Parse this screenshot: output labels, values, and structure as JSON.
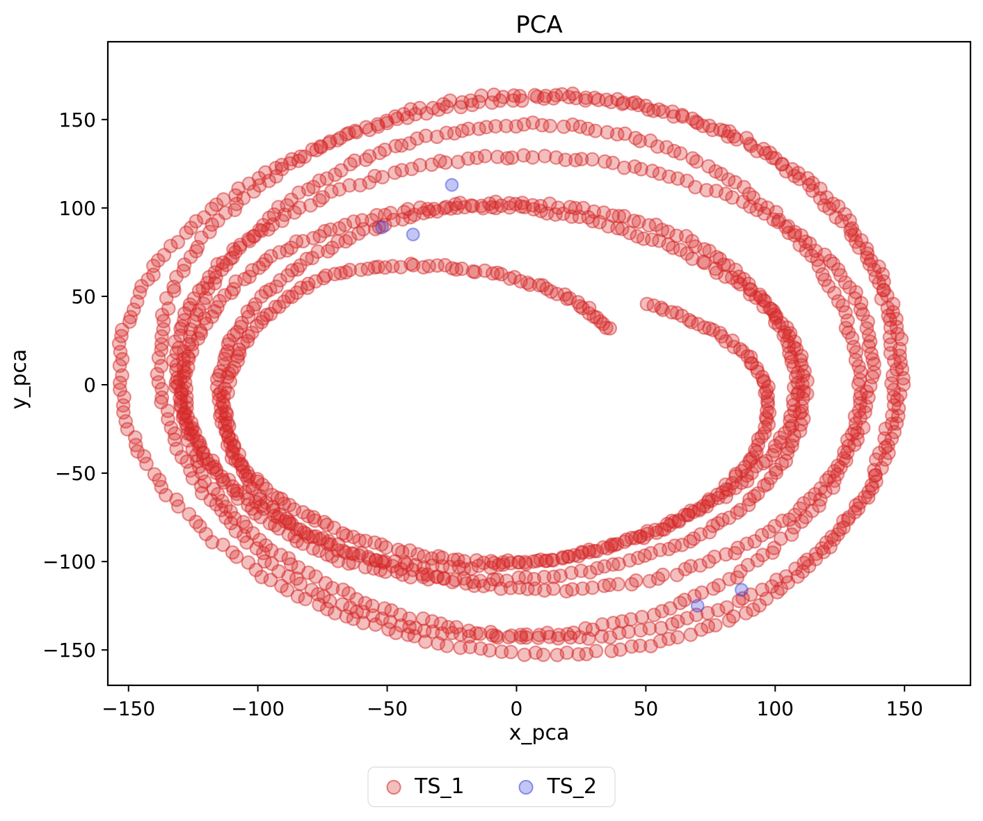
{
  "chart_data": {
    "type": "scatter",
    "title": "PCA",
    "xlabel": "x_pca",
    "ylabel": "y_pca",
    "xlim": [
      -158,
      175.5
    ],
    "ylim": [
      -170,
      194
    ],
    "xticks": [
      -150,
      -100,
      -50,
      0,
      50,
      100,
      150
    ],
    "yticks": [
      -150,
      -100,
      -50,
      0,
      50,
      100,
      150
    ],
    "grid": false,
    "background": "#ffffff",
    "legend": {
      "position": "below-center",
      "entries": [
        "TS_1",
        "TS_2"
      ]
    },
    "series": [
      {
        "name": "TS_1",
        "marker": "circle",
        "color": "#d62728",
        "fill_alpha": 0.3,
        "edge_alpha": 0.5,
        "marker_radius_px": 9.3,
        "summary": "Dense quasi-periodic trajectory of ~1600 overlapping markers forming 7 nested wobbly elliptical loops (sweeping outward then back inward), x range approx [-145,162], y range approx [-153,177], with both trajectory end-tips near (40,45) in the interior",
        "extent": {
          "x_min": -145,
          "x_max": 162,
          "y_min": -153,
          "y_max": 177
        },
        "generator": {
          "seed": 11,
          "n": 1600,
          "loops": 7.02,
          "start_angle": 0.96,
          "direction": -1,
          "tri_exp": 1.15,
          "rx": {
            "base": 100,
            "amp": 52
          },
          "ry": {
            "base": 76,
            "amp": 90
          },
          "cx": {
            "base": -10,
            "amp": 16
          },
          "cy": {
            "base": -13,
            "amp": 26
          },
          "wobble_rx": [
            [
              5,
              0.53,
              1.1
            ],
            [
              3.5,
              1.27,
              4.2
            ],
            [
              2,
              3.1,
              0.5
            ]
          ],
          "wobble_ry": [
            [
              6,
              0.47,
              2.6
            ],
            [
              4,
              1.13,
              5.1
            ],
            [
              2,
              2.9,
              1.9
            ]
          ],
          "wobble_cx": [
            [
              2.5,
              0.21,
              0.8
            ]
          ],
          "wobble_cy": [
            [
              2.5,
              0.26,
              3.9
            ]
          ],
          "jitter": 1.1,
          "end_taper": {
            "start_t": 0.97,
            "factor": 0.75
          }
        }
      },
      {
        "name": "TS_2",
        "marker": "circle",
        "color": "#3741da",
        "fill_alpha": 0.3,
        "edge_alpha": 0.47,
        "marker_radius_px": 8.8,
        "points": [
          [
            -25,
            113
          ],
          [
            -52,
            89
          ],
          [
            -40,
            85
          ],
          [
            70,
            -125
          ],
          [
            87,
            -116
          ]
        ]
      }
    ]
  }
}
